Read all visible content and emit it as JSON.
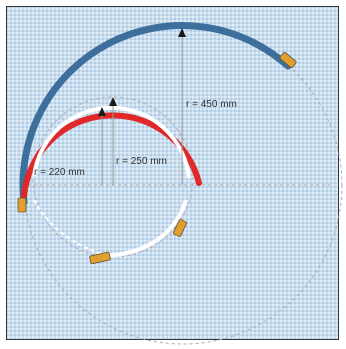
{
  "labels": {
    "r450": "r = 450 mm",
    "r250": "r = 250 mm",
    "r220": "r = 220 mm"
  },
  "colors": {
    "blue_hose": "#3e6e9c",
    "red_hose": "#e02828",
    "white_hose": "#ffffff",
    "fitting": "#e0a030",
    "guide_line": "#9a9a9a",
    "arrow": "#1a1a1a"
  }
}
